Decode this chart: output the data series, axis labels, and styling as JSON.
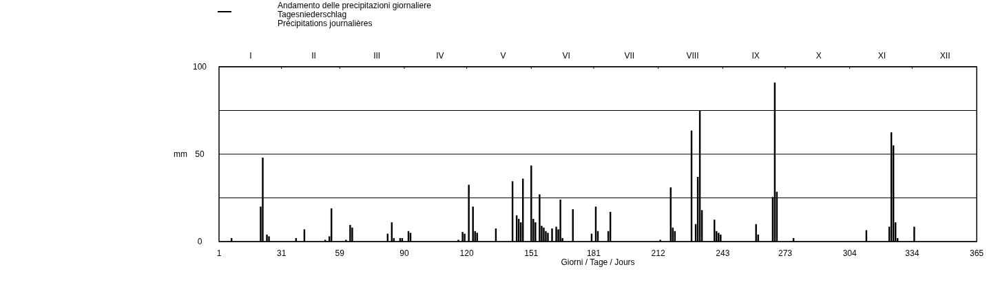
{
  "chart_data": {
    "type": "bar",
    "xlabel": "Giorni / Tage / Jours",
    "ylabel": "mm",
    "x": [
      7,
      21,
      22,
      24,
      25,
      38,
      42,
      52,
      54,
      55,
      62,
      64,
      65,
      82,
      84,
      85,
      88,
      89,
      92,
      93,
      116,
      118,
      119,
      121,
      123,
      124,
      125,
      134,
      142,
      144,
      145,
      146,
      147,
      151,
      152,
      153,
      155,
      156,
      157,
      158,
      159,
      161,
      163,
      164,
      165,
      166,
      171,
      180,
      182,
      183,
      188,
      189,
      213,
      218,
      219,
      220,
      228,
      230,
      231,
      232,
      233,
      239,
      240,
      241,
      242,
      259,
      260,
      267,
      268,
      269,
      277,
      312,
      323,
      324,
      325,
      326,
      327,
      335
    ],
    "series": [
      {
        "name": "Andamento delle precipitazioni giornaliere\nTagesniederschlag\nPrécipitations journalières",
        "color": "#000000",
        "values": [
          2,
          20,
          48,
          4,
          3,
          2,
          7,
          1,
          3,
          19,
          1,
          9.5,
          8,
          4.5,
          11,
          2,
          2,
          2,
          6,
          5,
          1,
          5.5,
          4.5,
          32.5,
          20,
          6,
          5,
          7.5,
          34.5,
          15,
          13,
          11,
          36,
          43.5,
          13,
          11,
          27,
          9,
          8,
          6,
          5,
          7.5,
          8.5,
          7,
          24,
          2,
          18.5,
          4.5,
          20,
          6,
          6,
          17,
          1,
          31,
          8,
          6,
          63.5,
          10,
          37,
          75,
          18,
          12.5,
          6,
          5,
          4,
          10,
          4,
          25.5,
          91,
          28.5,
          2,
          6.5,
          8.5,
          62.5,
          55,
          11,
          2,
          8.5
        ]
      }
    ],
    "xlim": [
      1,
      365
    ],
    "xticks": [
      1,
      31,
      59,
      90,
      120,
      151,
      181,
      212,
      243,
      273,
      304,
      334,
      365
    ],
    "annotations": [
      "I",
      "II",
      "III",
      "IV",
      "V",
      "VI",
      "VII",
      "VIII",
      "IX",
      "X",
      "XI",
      "XII"
    ],
    "ylim": [
      0,
      100
    ],
    "yticks": [
      0,
      {
        "value": 25,
        "label": null
      },
      50,
      {
        "value": 75,
        "label": null
      },
      100
    ],
    "grid": "y",
    "legend": "top"
  }
}
